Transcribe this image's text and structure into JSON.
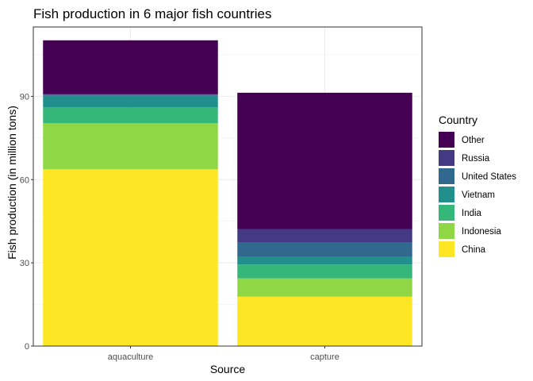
{
  "chart_data": {
    "type": "bar",
    "stacked": true,
    "title": "Fish production in 6 major fish countries",
    "xlabel": "Source",
    "ylabel": "Fish production (in million tons)",
    "categories": [
      "aquaculture",
      "capture"
    ],
    "ylim": [
      0,
      115
    ],
    "yticks": [
      0,
      30,
      60,
      90
    ],
    "grid": true,
    "legend": {
      "title": "Country",
      "position": "right"
    },
    "series": [
      {
        "name": "China",
        "color": "#FDE725",
        "values": [
          63.7,
          17.8
        ]
      },
      {
        "name": "Indonesia",
        "color": "#8FD744",
        "values": [
          16.6,
          6.6
        ]
      },
      {
        "name": "India",
        "color": "#35B779",
        "values": [
          5.7,
          5.0
        ]
      },
      {
        "name": "Vietnam",
        "color": "#21908C",
        "values": [
          4.2,
          2.8
        ]
      },
      {
        "name": "United States",
        "color": "#31688E",
        "values": [
          0.4,
          5.1
        ]
      },
      {
        "name": "Russia",
        "color": "#443A83",
        "values": [
          0.2,
          4.9
        ]
      },
      {
        "name": "Other",
        "color": "#440154",
        "values": [
          19.4,
          49.1
        ]
      }
    ]
  }
}
